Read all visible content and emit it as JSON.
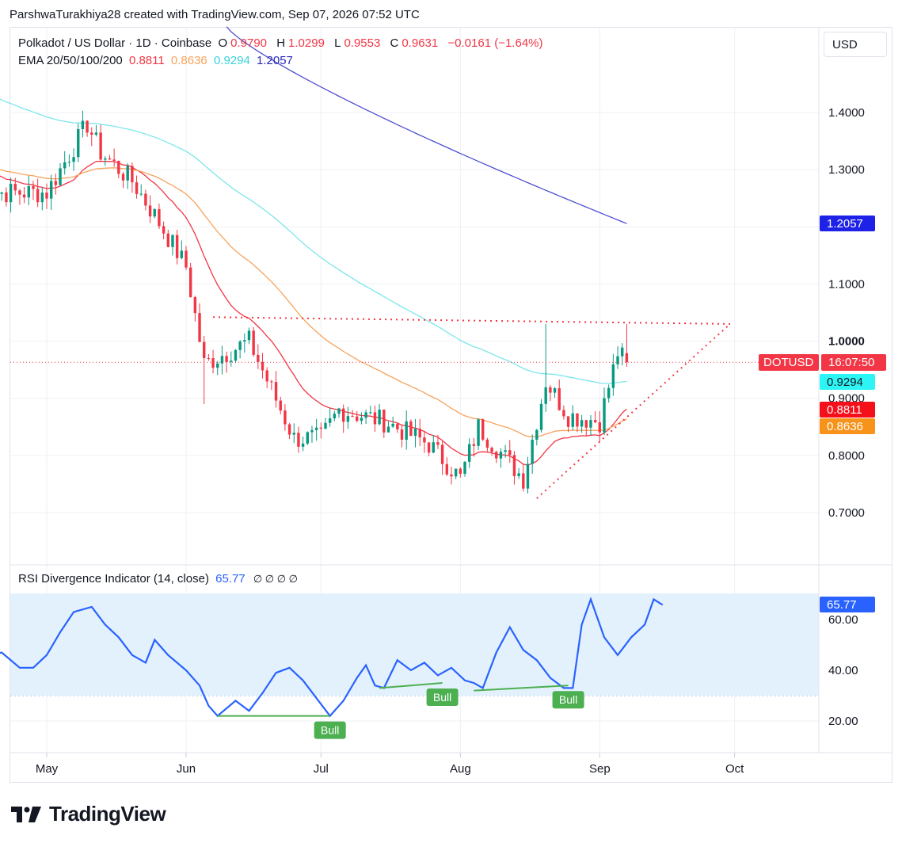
{
  "header": {
    "credit": "ParshwaTurakhiya28 created with TradingView.com, Sep 07, 2026 07:52 UTC"
  },
  "legend": {
    "symbol": "Polkadot / US Dollar · 1D · Coinbase",
    "o_label": "O",
    "o_value": "0.9790",
    "h_label": "H",
    "h_value": "1.0299",
    "l_label": "L",
    "l_value": "0.9553",
    "c_label": "C",
    "c_value": "0.9631",
    "change": "−0.0161 (−1.64%)",
    "ema_label": "EMA 20/50/100/200",
    "ema20": "0.8811",
    "ema50": "0.8636",
    "ema100": "0.9294",
    "ema200": "1.2057"
  },
  "currency": "USD",
  "price_tags": {
    "symbol": "DOTUSD",
    "countdown": "16:07:50",
    "ema200": "1.2057",
    "ema100": "0.9294",
    "ema20": "0.8811",
    "ema50": "0.8636",
    "rsi": "65.77"
  },
  "rsi_legend": {
    "title": "RSI Divergence Indicator (14, close)",
    "value": "65.77",
    "markers": "∅ ∅ ∅ ∅"
  },
  "colors": {
    "up": "#089981",
    "down": "#f23645",
    "ema20": "#f23645",
    "ema50": "#f7a35c",
    "ema100": "#7de6ec",
    "ema200": "#4e4fd0",
    "rsi": "#2962ff",
    "rsi_band": "#e3f1fd",
    "bull": "#4caf50"
  },
  "logo_text": "TradingView",
  "chart_data": [
    {
      "type": "candlestick",
      "x_axis": {
        "labels": [
          "May",
          "Jun",
          "Jul",
          "Aug",
          "Sep",
          "Oct"
        ]
      },
      "y_axis": {
        "ticks": [
          "1.4000",
          "1.3000",
          "1.1000",
          "1.0000",
          "0.9000",
          "0.8000",
          "0.7000"
        ],
        "range": [
          0.6,
          1.5
        ]
      },
      "grid": true,
      "ohlc_last": {
        "open": 0.979,
        "high": 1.0299,
        "low": 0.9553,
        "close": 0.9631
      },
      "close_path_key_points": [
        [
          "May 1",
          1.26
        ],
        [
          "May 10",
          1.38
        ],
        [
          "May 13",
          1.33
        ],
        [
          "May 20",
          1.28
        ],
        [
          "May 25",
          1.22
        ],
        [
          "Jun 1",
          1.13
        ],
        [
          "Jun 5",
          0.96
        ],
        [
          "Jun 15",
          1.0
        ],
        [
          "Jun 25",
          0.83
        ],
        [
          "Jul 1",
          0.83
        ],
        [
          "Jul 5",
          0.88
        ],
        [
          "Jul 15",
          0.86
        ],
        [
          "Jul 25",
          0.82
        ],
        [
          "Aug 1",
          0.76
        ],
        [
          "Aug 5",
          0.85
        ],
        [
          "Aug 15",
          0.76
        ],
        [
          "Aug 20",
          0.93
        ],
        [
          "Aug 25",
          0.87
        ],
        [
          "Sep 1",
          0.86
        ],
        [
          "Sep 5",
          0.98
        ],
        [
          "Sep 7",
          0.9631
        ]
      ],
      "ema_series": [
        {
          "name": "EMA 20",
          "last": 0.8811
        },
        {
          "name": "EMA 50",
          "last": 0.8636
        },
        {
          "name": "EMA 100",
          "last": 0.9294
        },
        {
          "name": "EMA 200",
          "last": 1.2057
        }
      ],
      "trendlines": {
        "resistance": 1.03,
        "support_low": 0.725
      }
    },
    {
      "type": "line",
      "title": "RSI Divergence Indicator (14, close)",
      "y_axis": {
        "ticks": [
          "60.00",
          "40.00",
          "20.00"
        ],
        "band": [
          30,
          70
        ]
      },
      "last": 65.77,
      "signals": [
        "Bull",
        "Bull",
        "Bull"
      ]
    }
  ]
}
